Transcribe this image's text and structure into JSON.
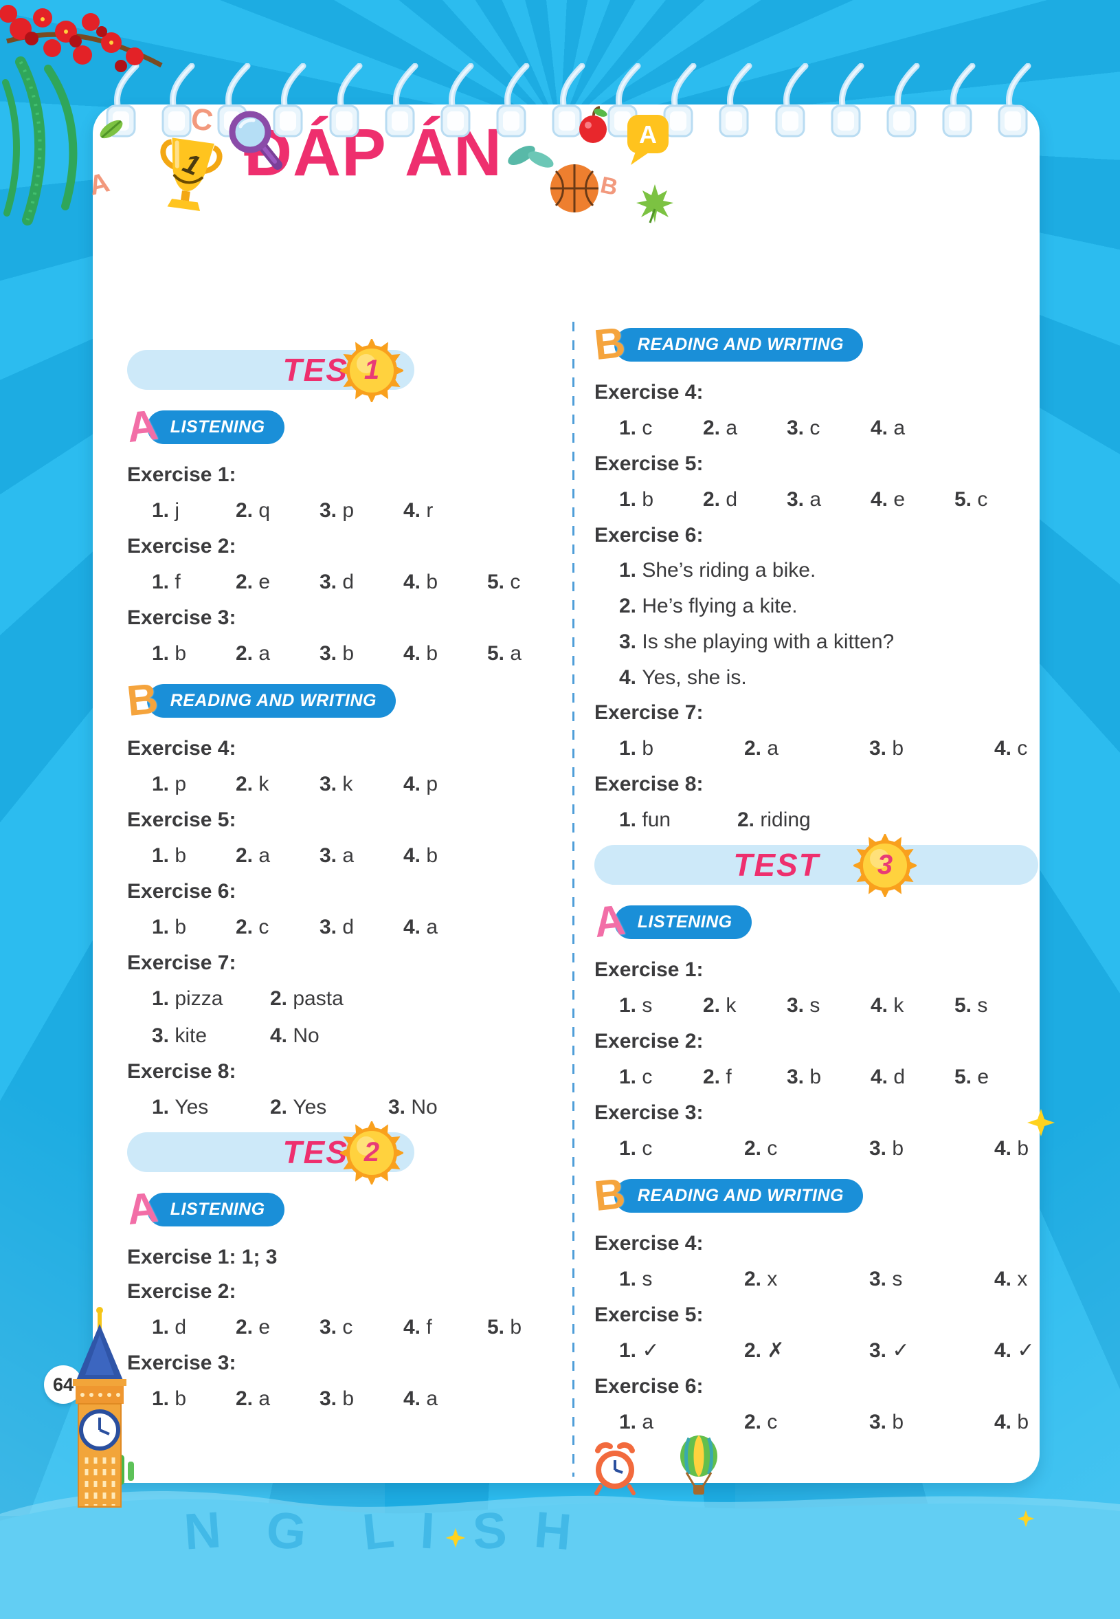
{
  "page_title": "ĐÁP ÁN",
  "footer": {
    "page_number": "64",
    "letters": [
      "N",
      "G",
      "L",
      "I",
      "S",
      "H"
    ]
  },
  "decor": {
    "trophy_number": "1",
    "bubble_letter": "A",
    "letter_c": "C",
    "letter_a": "A",
    "letter_b": "B"
  },
  "colors": {
    "background": "#1fb0e6",
    "page": "#ffffff",
    "title_pink": "#ee2f6e",
    "section_blue": "#1a8fd8",
    "pill_light_blue": "#cde9f9",
    "letter_a_pink": "#f26ea7",
    "letter_b_orange": "#f5a43d",
    "text_dark": "#3b3b3d",
    "sun_orange": "#f9a01d",
    "sun_yellow": "#ffd23e"
  },
  "columns": [
    {
      "blocks": [
        {
          "t": "test",
          "label": "TEST",
          "num": "1",
          "variant": "half"
        },
        {
          "t": "sec",
          "letter": "A",
          "label": "LISTENING"
        },
        {
          "t": "ex",
          "label": "Exercise 1:"
        },
        {
          "t": "row",
          "size": "n",
          "items": [
            [
              "1.",
              "j"
            ],
            [
              "2.",
              "q"
            ],
            [
              "3.",
              "p"
            ],
            [
              "4.",
              "r"
            ]
          ]
        },
        {
          "t": "ex",
          "label": "Exercise 2:"
        },
        {
          "t": "row",
          "size": "n",
          "items": [
            [
              "1.",
              "f"
            ],
            [
              "2.",
              "e"
            ],
            [
              "3.",
              "d"
            ],
            [
              "4.",
              "b"
            ],
            [
              "5.",
              "c"
            ]
          ]
        },
        {
          "t": "ex",
          "label": "Exercise 3:"
        },
        {
          "t": "row",
          "size": "n",
          "items": [
            [
              "1.",
              "b"
            ],
            [
              "2.",
              "a"
            ],
            [
              "3.",
              "b"
            ],
            [
              "4.",
              "b"
            ],
            [
              "5.",
              "a"
            ]
          ]
        },
        {
          "t": "sec",
          "letter": "B",
          "label": "READING AND WRITING"
        },
        {
          "t": "ex",
          "label": "Exercise 4:"
        },
        {
          "t": "row",
          "size": "n",
          "items": [
            [
              "1.",
              "p"
            ],
            [
              "2.",
              "k"
            ],
            [
              "3.",
              "k"
            ],
            [
              "4.",
              "p"
            ]
          ]
        },
        {
          "t": "ex",
          "label": "Exercise 5:"
        },
        {
          "t": "row",
          "size": "n",
          "items": [
            [
              "1.",
              "b"
            ],
            [
              "2.",
              "a"
            ],
            [
              "3.",
              "a"
            ],
            [
              "4.",
              "b"
            ]
          ]
        },
        {
          "t": "ex",
          "label": "Exercise 6:"
        },
        {
          "t": "row",
          "size": "n",
          "items": [
            [
              "1.",
              "b"
            ],
            [
              "2.",
              "c"
            ],
            [
              "3.",
              "d"
            ],
            [
              "4.",
              "a"
            ]
          ]
        },
        {
          "t": "ex",
          "label": "Exercise 7:"
        },
        {
          "t": "row",
          "size": "m",
          "items": [
            [
              "1.",
              "pizza"
            ],
            [
              "2.",
              "pasta"
            ]
          ]
        },
        {
          "t": "row",
          "size": "m",
          "items": [
            [
              "3.",
              "kite"
            ],
            [
              "4.",
              "No"
            ]
          ]
        },
        {
          "t": "ex",
          "label": "Exercise 8:"
        },
        {
          "t": "row",
          "size": "m",
          "items": [
            [
              "1.",
              "Yes"
            ],
            [
              "2.",
              "Yes"
            ],
            [
              "3.",
              "No"
            ]
          ]
        },
        {
          "t": "test",
          "label": "TEST",
          "num": "2",
          "variant": "half"
        },
        {
          "t": "sec",
          "letter": "A",
          "label": "LISTENING"
        },
        {
          "t": "ex",
          "label": "Exercise 1: 1; 3"
        },
        {
          "t": "ex",
          "label": "Exercise 2:"
        },
        {
          "t": "row",
          "size": "n",
          "items": [
            [
              "1.",
              "d"
            ],
            [
              "2.",
              "e"
            ],
            [
              "3.",
              "c"
            ],
            [
              "4.",
              "f"
            ],
            [
              "5.",
              "b"
            ]
          ]
        },
        {
          "t": "ex",
          "label": "Exercise 3:"
        },
        {
          "t": "row",
          "size": "n",
          "items": [
            [
              "1.",
              "b"
            ],
            [
              "2.",
              "a"
            ],
            [
              "3.",
              "b"
            ],
            [
              "4.",
              "a"
            ]
          ]
        }
      ]
    },
    {
      "blocks": [
        {
          "t": "sec",
          "letter": "B",
          "label": "READING AND WRITING"
        },
        {
          "t": "ex",
          "label": "Exercise 4:"
        },
        {
          "t": "row",
          "size": "n",
          "items": [
            [
              "1.",
              "c"
            ],
            [
              "2.",
              "a"
            ],
            [
              "3.",
              "c"
            ],
            [
              "4.",
              "a"
            ]
          ]
        },
        {
          "t": "ex",
          "label": "Exercise 5:"
        },
        {
          "t": "row",
          "size": "n",
          "items": [
            [
              "1.",
              "b"
            ],
            [
              "2.",
              "d"
            ],
            [
              "3.",
              "a"
            ],
            [
              "4.",
              "e"
            ],
            [
              "5.",
              "c"
            ]
          ]
        },
        {
          "t": "ex",
          "label": "Exercise 6:"
        },
        {
          "t": "row",
          "size": "f",
          "items": [
            [
              "1.",
              "She’s riding a bike."
            ]
          ]
        },
        {
          "t": "row",
          "size": "f",
          "items": [
            [
              "2.",
              "He’s flying a kite."
            ]
          ]
        },
        {
          "t": "row",
          "size": "f",
          "items": [
            [
              "3.",
              "Is she playing with a kitten?"
            ]
          ]
        },
        {
          "t": "row",
          "size": "f",
          "items": [
            [
              "4.",
              "Yes, she is."
            ]
          ]
        },
        {
          "t": "ex",
          "label": "Exercise 7:"
        },
        {
          "t": "row",
          "size": "w",
          "items": [
            [
              "1.",
              "b"
            ],
            [
              "2.",
              "a"
            ],
            [
              "3.",
              "b"
            ],
            [
              "4.",
              "c"
            ]
          ]
        },
        {
          "t": "ex",
          "label": "Exercise 8:"
        },
        {
          "t": "row",
          "size": "m",
          "items": [
            [
              "1.",
              "fun"
            ],
            [
              "2.",
              "riding"
            ]
          ]
        },
        {
          "t": "test",
          "label": "TEST",
          "num": "3",
          "variant": "full"
        },
        {
          "t": "sec",
          "letter": "A",
          "label": "LISTENING"
        },
        {
          "t": "ex",
          "label": "Exercise 1:"
        },
        {
          "t": "row",
          "size": "n",
          "items": [
            [
              "1.",
              "s"
            ],
            [
              "2.",
              "k"
            ],
            [
              "3.",
              "s"
            ],
            [
              "4.",
              "k"
            ],
            [
              "5.",
              "s"
            ]
          ]
        },
        {
          "t": "ex",
          "label": "Exercise 2:"
        },
        {
          "t": "row",
          "size": "n",
          "items": [
            [
              "1.",
              "c"
            ],
            [
              "2.",
              "f"
            ],
            [
              "3.",
              "b"
            ],
            [
              "4.",
              "d"
            ],
            [
              "5.",
              "e"
            ]
          ]
        },
        {
          "t": "ex",
          "label": "Exercise 3:"
        },
        {
          "t": "row",
          "size": "w",
          "items": [
            [
              "1.",
              "c"
            ],
            [
              "2.",
              "c"
            ],
            [
              "3.",
              "b"
            ],
            [
              "4.",
              "b"
            ]
          ]
        },
        {
          "t": "sec",
          "letter": "B",
          "label": "READING AND WRITING"
        },
        {
          "t": "ex",
          "label": "Exercise 4:"
        },
        {
          "t": "row",
          "size": "w",
          "items": [
            [
              "1.",
              "s"
            ],
            [
              "2.",
              "x"
            ],
            [
              "3.",
              "s"
            ],
            [
              "4.",
              "x"
            ]
          ]
        },
        {
          "t": "ex",
          "label": "Exercise 5:"
        },
        {
          "t": "row",
          "size": "w",
          "items": [
            [
              "1.",
              "✓"
            ],
            [
              "2.",
              "✗"
            ],
            [
              "3.",
              "✓"
            ],
            [
              "4.",
              "✓"
            ]
          ]
        },
        {
          "t": "ex",
          "label": "Exercise 6:"
        },
        {
          "t": "row",
          "size": "w",
          "items": [
            [
              "1.",
              "a"
            ],
            [
              "2.",
              "c"
            ],
            [
              "3.",
              "b"
            ],
            [
              "4.",
              "b"
            ]
          ]
        }
      ]
    }
  ]
}
